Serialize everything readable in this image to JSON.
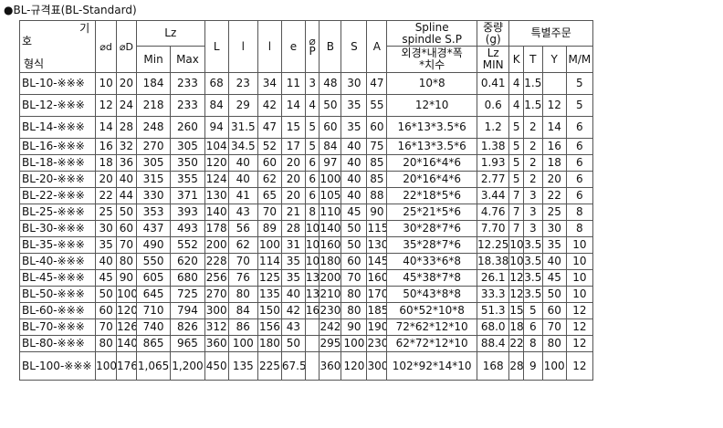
{
  "title": "●BL-규격표(BL-Standard)",
  "header": {
    "model_top": "기",
    "model_mid": "호",
    "model_bottom": "형식",
    "od": "⌀d",
    "oD": "⌀D",
    "lz": "Lz",
    "lz_min": "Min",
    "lz_max": "Max",
    "L": "L",
    "l1": "l",
    "l2": "l",
    "e": "e",
    "phi": "⌀",
    "P": "P",
    "B": "B",
    "S": "S",
    "A": "A",
    "spline_line1": "Spline",
    "spline_line2": "spindle S.P",
    "spline_sub_line1": "외경*내경*폭",
    "spline_sub_line2": "*치수",
    "weight_line1": "중량",
    "weight_line2": "(g)",
    "weight_sub_line1": "Lz",
    "weight_sub_line2": "MIN",
    "special": "특별주문",
    "K": "K",
    "T": "T",
    "Y": "Y",
    "MM": "M/M"
  },
  "rows": [
    [
      "BL-10-※※※",
      "10",
      "20",
      "184",
      "233",
      "68",
      "23",
      "34",
      "11",
      "3",
      "48",
      "30",
      "47",
      "10*8",
      "0.41",
      "4",
      "1.5",
      "",
      "5"
    ],
    [
      "BL-12-※※※",
      "12",
      "24",
      "218",
      "233",
      "84",
      "29",
      "42",
      "14",
      "4",
      "50",
      "35",
      "55",
      "12*10",
      "0.6",
      "4",
      "1.5",
      "12",
      "5"
    ],
    [
      "BL-14-※※※",
      "14",
      "28",
      "248",
      "260",
      "94",
      "31.5",
      "47",
      "15",
      "5",
      "60",
      "35",
      "60",
      "16*13*3.5*6",
      "1.2",
      "5",
      "2",
      "14",
      "6"
    ],
    [
      "BL-16-※※※",
      "16",
      "32",
      "270",
      "305",
      "104",
      "34.5",
      "52",
      "17",
      "5",
      "84",
      "40",
      "75",
      "16*13*3.5*6",
      "1.38",
      "5",
      "2",
      "16",
      "6"
    ],
    [
      "BL-18-※※※",
      "18",
      "36",
      "305",
      "350",
      "120",
      "40",
      "60",
      "20",
      "6",
      "97",
      "40",
      "85",
      "20*16*4*6",
      "1.93",
      "5",
      "2",
      "18",
      "6"
    ],
    [
      "BL-20-※※※",
      "20",
      "40",
      "315",
      "355",
      "124",
      "40",
      "62",
      "20",
      "6",
      "100",
      "40",
      "85",
      "20*16*4*6",
      "2.77",
      "5",
      "2",
      "20",
      "6"
    ],
    [
      "BL-22-※※※",
      "22",
      "44",
      "330",
      "371",
      "130",
      "41",
      "65",
      "20",
      "6",
      "105",
      "40",
      "88",
      "22*18*5*6",
      "3.44",
      "7",
      "3",
      "22",
      "6"
    ],
    [
      "BL-25-※※※",
      "25",
      "50",
      "353",
      "393",
      "140",
      "43",
      "70",
      "21",
      "8",
      "110",
      "45",
      "90",
      "25*21*5*6",
      "4.76",
      "7",
      "3",
      "25",
      "8"
    ],
    [
      "BL-30-※※※",
      "30",
      "60",
      "437",
      "493",
      "178",
      "56",
      "89",
      "28",
      "10",
      "140",
      "50",
      "115",
      "30*28*7*6",
      "7.70",
      "7",
      "3",
      "30",
      "8"
    ],
    [
      "BL-35-※※※",
      "35",
      "70",
      "490",
      "552",
      "200",
      "62",
      "100",
      "31",
      "10",
      "160",
      "50",
      "130",
      "35*28*7*6",
      "12.25",
      "10",
      "3.5",
      "35",
      "10"
    ],
    [
      "BL-40-※※※",
      "40",
      "80",
      "550",
      "620",
      "228",
      "70",
      "114",
      "35",
      "10",
      "180",
      "60",
      "145",
      "40*33*6*8",
      "18.38",
      "10",
      "3.5",
      "40",
      "10"
    ],
    [
      "BL-45-※※※",
      "45",
      "90",
      "605",
      "680",
      "256",
      "76",
      "125",
      "35",
      "13",
      "200",
      "70",
      "160",
      "45*38*7*8",
      "26.1",
      "12",
      "3.5",
      "45",
      "10"
    ],
    [
      "BL-50-※※※",
      "50",
      "100",
      "645",
      "725",
      "270",
      "80",
      "135",
      "40",
      "13",
      "210",
      "80",
      "170",
      "50*43*8*8",
      "33.3",
      "12",
      "3.5",
      "50",
      "10"
    ],
    [
      "BL-60-※※※",
      "60",
      "120",
      "710",
      "794",
      "300",
      "84",
      "150",
      "42",
      "16",
      "230",
      "80",
      "185",
      "60*52*10*8",
      "51.3",
      "15",
      "5",
      "60",
      "12"
    ],
    [
      "BL-70-※※※",
      "70",
      "126",
      "740",
      "826",
      "312",
      "86",
      "156",
      "43",
      "",
      "242",
      "90",
      "190",
      "72*62*12*10",
      "68.0",
      "18",
      "6",
      "70",
      "12"
    ],
    [
      "BL-80-※※※",
      "80",
      "140",
      "865",
      "965",
      "360",
      "100",
      "180",
      "50",
      "",
      "295",
      "100",
      "230",
      "62*72*12*10",
      "88.4",
      "22",
      "8",
      "80",
      "12"
    ],
    [
      "BL-100-※※※",
      "100",
      "176",
      "1,065",
      "1,200",
      "450",
      "135",
      "225",
      "67.5",
      "",
      "360",
      "120",
      "300",
      "102*92*14*10",
      "168",
      "28",
      "9",
      "100",
      "12"
    ]
  ]
}
